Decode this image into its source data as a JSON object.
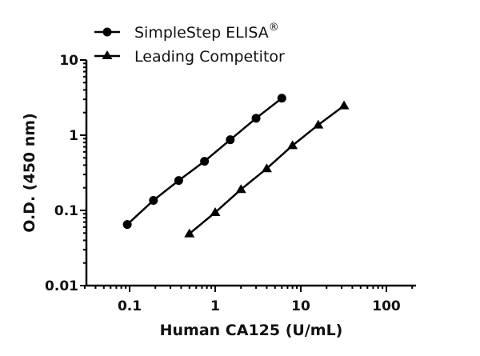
{
  "chart_data": {
    "type": "line",
    "title": "",
    "xlabel": "Human CA125 (U/mL)",
    "ylabel": "O.D. (450 nm)",
    "xscale": "log",
    "yscale": "log",
    "xlim": [
      0.03,
      200
    ],
    "ylim": [
      0.01,
      10
    ],
    "x_ticks": [
      "0.1",
      "1",
      "10",
      "100"
    ],
    "y_ticks": [
      "0.01",
      "0.1",
      "1",
      "10"
    ],
    "grid": false,
    "legend_position": "top",
    "series": [
      {
        "name": "SimpleStep ELISA®",
        "marker": "circle",
        "x": [
          0.094,
          0.19,
          0.375,
          0.75,
          1.5,
          3.0,
          6.0
        ],
        "y": [
          0.065,
          0.136,
          0.25,
          0.45,
          0.87,
          1.68,
          3.1
        ]
      },
      {
        "name": "Leading Competitor",
        "marker": "triangle",
        "x": [
          0.5,
          1,
          2,
          4,
          8,
          16,
          32
        ],
        "y": [
          0.049,
          0.094,
          0.19,
          0.36,
          0.73,
          1.37,
          2.47
        ]
      }
    ]
  },
  "legend": {
    "items": [
      {
        "label": "SimpleStep ELISA",
        "sup": "®",
        "marker": "circle"
      },
      {
        "label": "Leading Competitor",
        "sup": "",
        "marker": "triangle"
      }
    ]
  },
  "axes": {
    "x_title": "Human CA125 (U/mL)",
    "y_title": "O.D. (450 nm)",
    "x_tick_labels": [
      "0.1",
      "1",
      "10",
      "100"
    ],
    "y_tick_labels": [
      "10",
      "1",
      "0.1",
      "0.01"
    ]
  }
}
